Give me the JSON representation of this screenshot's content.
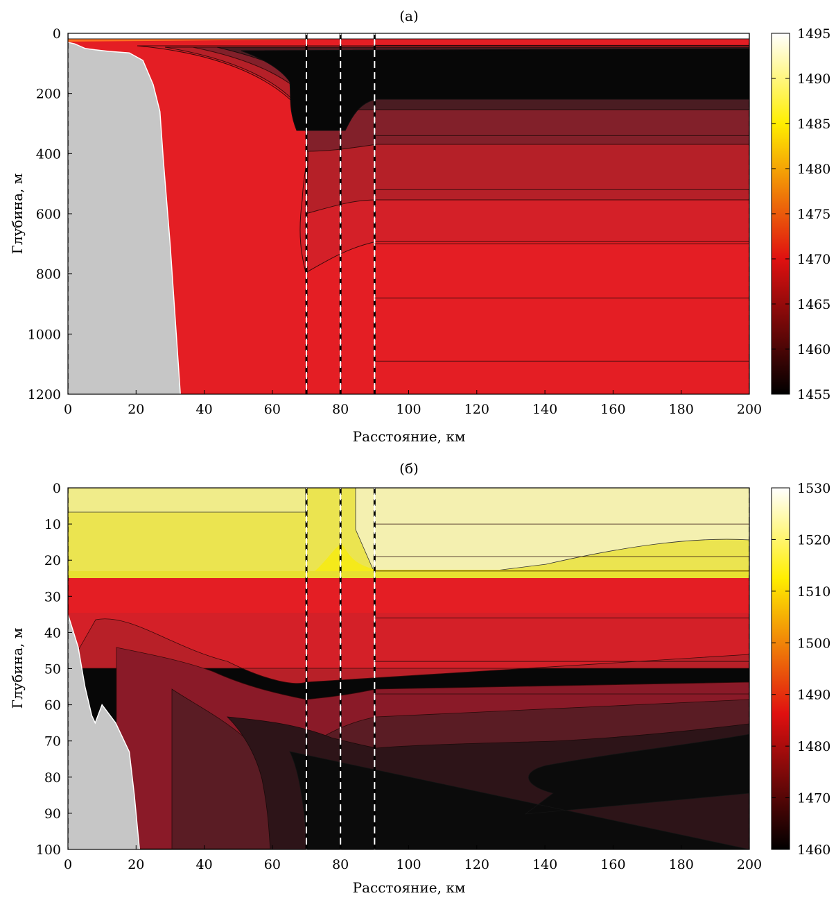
{
  "chart_data": [
    {
      "type": "heatmap",
      "title": "(а)",
      "xlabel": "Расстояние, км",
      "ylabel": "Глубина, м",
      "xlim": [
        0,
        200
      ],
      "ylim": [
        1200,
        0
      ],
      "y_inverted": true,
      "xticks": [
        0,
        20,
        40,
        60,
        80,
        100,
        120,
        140,
        160,
        180,
        200
      ],
      "yticks": [
        0,
        200,
        400,
        600,
        800,
        1000,
        1200
      ],
      "colorbar": {
        "range": [
          1455,
          1495
        ],
        "ticks": [
          1455,
          1460,
          1465,
          1470,
          1475,
          1480,
          1485,
          1490,
          1495
        ],
        "colormap": "hot"
      },
      "vertical_markers_km": [
        70,
        80,
        90
      ],
      "land_profile": [
        [
          0,
          30
        ],
        [
          2,
          35
        ],
        [
          5,
          50
        ],
        [
          8,
          55
        ],
        [
          12,
          60
        ],
        [
          18,
          65
        ],
        [
          22,
          90
        ],
        [
          25,
          170
        ],
        [
          27,
          260
        ],
        [
          28,
          420
        ],
        [
          30,
          700
        ],
        [
          31.5,
          950
        ],
        [
          33,
          1200
        ],
        [
          0,
          1200
        ]
      ],
      "layers_depth_far_field_m": [
        {
          "value": 1457,
          "from": 40,
          "to": 340
        },
        {
          "value": 1459.5,
          "from": 340,
          "to": 520
        },
        {
          "value": 1462,
          "from": 520,
          "to": 700
        },
        {
          "value": 1464.5,
          "from": 700,
          "to": 880
        },
        {
          "value": 1466.5,
          "from": 880,
          "to": 1090
        },
        {
          "value": 1468,
          "from": 1090,
          "to": 1200
        }
      ],
      "colors": {
        "land": "#c6c6c6",
        "boundary_markers": "#000000",
        "inner_markers": "#ffffff"
      }
    },
    {
      "type": "heatmap",
      "title": "(б)",
      "xlabel": "Расстояние, км",
      "ylabel": "Глубина, м",
      "xlim": [
        0,
        200
      ],
      "ylim": [
        100,
        0
      ],
      "y_inverted": true,
      "xticks": [
        0,
        20,
        40,
        60,
        80,
        100,
        120,
        140,
        160,
        180,
        200
      ],
      "yticks": [
        0,
        10,
        20,
        30,
        40,
        50,
        60,
        70,
        80,
        90,
        100
      ],
      "colorbar": {
        "range": [
          1460,
          1530
        ],
        "ticks": [
          1460,
          1470,
          1480,
          1490,
          1500,
          1510,
          1520,
          1530
        ],
        "colormap": "hot"
      },
      "vertical_markers_km": [
        70,
        80,
        90
      ],
      "land_profile": [
        [
          0,
          35
        ],
        [
          3,
          44
        ],
        [
          5,
          55
        ],
        [
          7,
          63
        ],
        [
          8,
          65
        ],
        [
          10,
          60
        ],
        [
          14,
          65
        ],
        [
          18,
          73
        ],
        [
          19.5,
          85
        ],
        [
          21,
          100
        ],
        [
          0,
          100
        ]
      ],
      "layers_depth_far_field_m": [
        {
          "value": 1520,
          "from": 0,
          "to": 10
        },
        {
          "value": 1516,
          "from": 10,
          "to": 19
        },
        {
          "value": 1511,
          "from": 19,
          "to": 23
        },
        {
          "value": 1482,
          "from": 23,
          "to": 36
        },
        {
          "value": 1476,
          "from": 36,
          "to": 48
        },
        {
          "value": 1468,
          "from": 48,
          "to": 57
        },
        {
          "value": 1463,
          "from": 57,
          "to": 100
        }
      ],
      "colors": {
        "land": "#c6c6c6",
        "boundary_markers": "#000000",
        "inner_markers": "#ffffff"
      }
    }
  ]
}
